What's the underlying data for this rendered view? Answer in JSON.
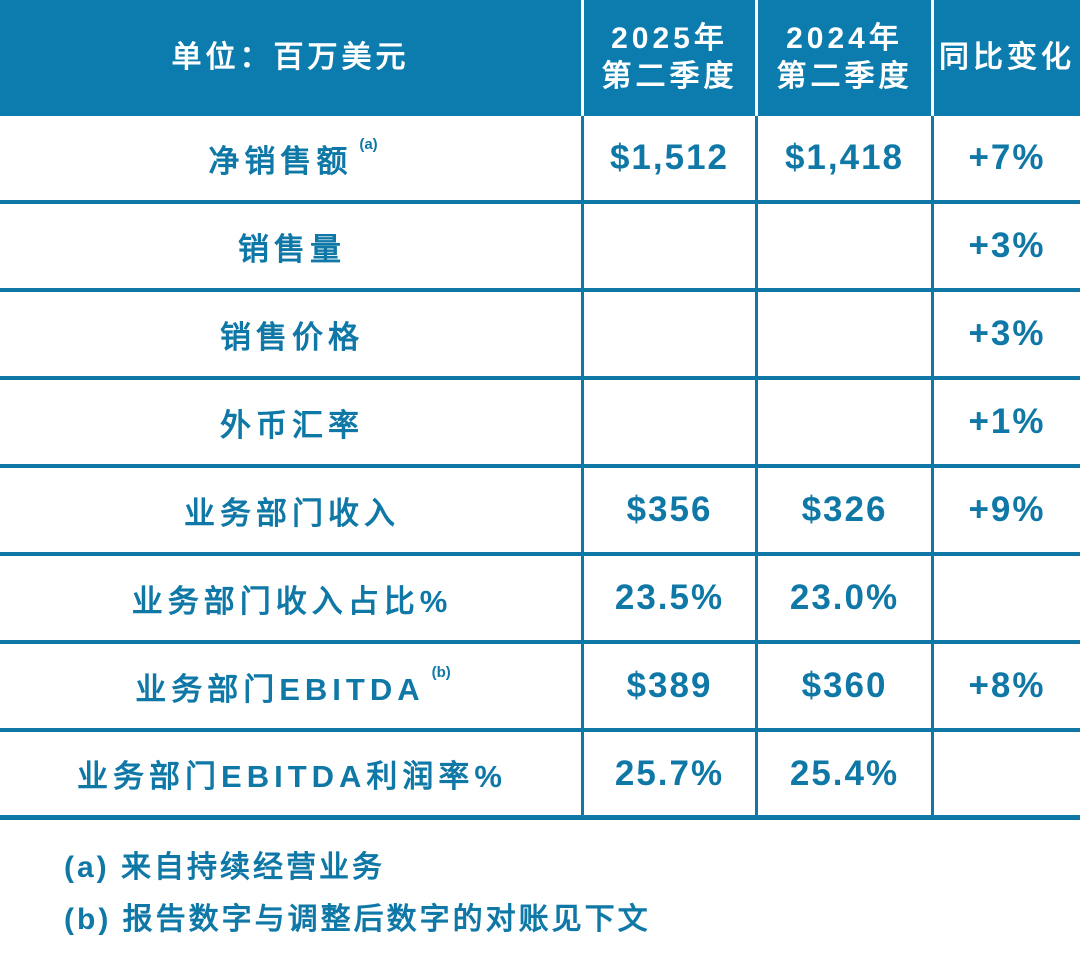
{
  "colors": {
    "header_bg": "#0c7cae",
    "accent_text": "#0f78a6",
    "header_text": "#ffffff",
    "row_bg": "#ffffff"
  },
  "table": {
    "header": {
      "unit_label": "单位：百万美元",
      "col_2025_line1": "2025年",
      "col_2025_line2": "第二季度",
      "col_2024_line1": "2024年",
      "col_2024_line2": "第二季度",
      "yoy_label": "同比变化"
    },
    "rows": [
      {
        "label": "净销售额",
        "sup": "(a)",
        "q2_2025": "$1,512",
        "q2_2024": "$1,418",
        "yoy": "+7%"
      },
      {
        "label": "销售量",
        "sup": "",
        "q2_2025": "",
        "q2_2024": "",
        "yoy": "+3%"
      },
      {
        "label": "销售价格",
        "sup": "",
        "q2_2025": "",
        "q2_2024": "",
        "yoy": "+3%"
      },
      {
        "label": "外币汇率",
        "sup": "",
        "q2_2025": "",
        "q2_2024": "",
        "yoy": "+1%"
      },
      {
        "label": "业务部门收入",
        "sup": "",
        "q2_2025": "$356",
        "q2_2024": "$326",
        "yoy": "+9%"
      },
      {
        "label": "业务部门收入占比%",
        "sup": "",
        "q2_2025": "23.5%",
        "q2_2024": "23.0%",
        "yoy": ""
      },
      {
        "label": "业务部门EBITDA",
        "sup": "(b)",
        "q2_2025": "$389",
        "q2_2024": "$360",
        "yoy": "+8%"
      },
      {
        "label": "业务部门EBITDA利润率%",
        "sup": "",
        "q2_2025": "25.7%",
        "q2_2024": "25.4%",
        "yoy": ""
      }
    ]
  },
  "footnotes": {
    "a": "(a) 来自持续经营业务",
    "b": "(b) 报告数字与调整后数字的对账见下文"
  },
  "chart_data": {
    "type": "table",
    "title": "单位：百万美元",
    "columns": [
      "单位：百万美元",
      "2025年第二季度",
      "2024年第二季度",
      "同比变化"
    ],
    "rows": [
      [
        "净销售额(a)",
        "$1,512",
        "$1,418",
        "+7%"
      ],
      [
        "销售量",
        "",
        "",
        "+3%"
      ],
      [
        "销售价格",
        "",
        "",
        "+3%"
      ],
      [
        "外币汇率",
        "",
        "",
        "+1%"
      ],
      [
        "业务部门收入",
        "$356",
        "$326",
        "+9%"
      ],
      [
        "业务部门收入占比%",
        "23.5%",
        "23.0%",
        ""
      ],
      [
        "业务部门EBITDA(b)",
        "$389",
        "$360",
        "+8%"
      ],
      [
        "业务部门EBITDA利润率%",
        "25.7%",
        "25.4%",
        ""
      ]
    ],
    "footnotes": [
      "(a) 来自持续经营业务",
      "(b) 报告数字与调整后数字的对账见下文"
    ]
  }
}
